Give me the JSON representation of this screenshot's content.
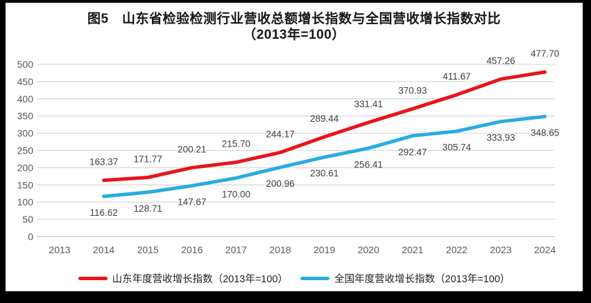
{
  "window": {
    "frame_color": "#000000",
    "canvas_color": "#ffffff"
  },
  "title": {
    "line1": "图5　山东省检验检测行业营收总额增长指数与全国营收增长指数对比",
    "line2": "（2013年=100）"
  },
  "chart_data": {
    "type": "line",
    "title": "图5 山东省检验检测行业营收总额增长指数与全国营收增长指数对比（2013年=100）",
    "categories": [
      "2013",
      "2014",
      "2015",
      "2016",
      "2017",
      "2018",
      "2019",
      "2020",
      "2021",
      "2022",
      "2023",
      "2024"
    ],
    "series": [
      {
        "name": "山东年度营收增长指数（2013年=100）",
        "color": "#e8141e",
        "label_position": "above",
        "values": [
          null,
          163.37,
          171.77,
          200.21,
          215.7,
          244.17,
          289.44,
          331.41,
          370.93,
          411.67,
          457.26,
          477.7
        ]
      },
      {
        "name": "全国年度营收增长指数（2013年=100）",
        "color": "#27ace0",
        "label_position": "below",
        "values": [
          null,
          116.62,
          128.71,
          147.67,
          170.0,
          200.96,
          230.61,
          256.41,
          292.47,
          305.74,
          333.93,
          348.65
        ]
      }
    ],
    "ylim": [
      0,
      500
    ],
    "ytick_step": 50,
    "yticks": [
      0,
      50,
      100,
      150,
      200,
      250,
      300,
      350,
      400,
      450,
      500
    ],
    "grid": "horizontal",
    "legend_position": "bottom",
    "data_label_decimals": 2,
    "xlabel": "",
    "ylabel": ""
  },
  "style": {
    "gridline_color": "#d9d9d9",
    "axis_line_color": "#c9c9c9",
    "tick_label_color": "#595959",
    "data_label_color": "#3f3f3f",
    "line_width": 5
  }
}
